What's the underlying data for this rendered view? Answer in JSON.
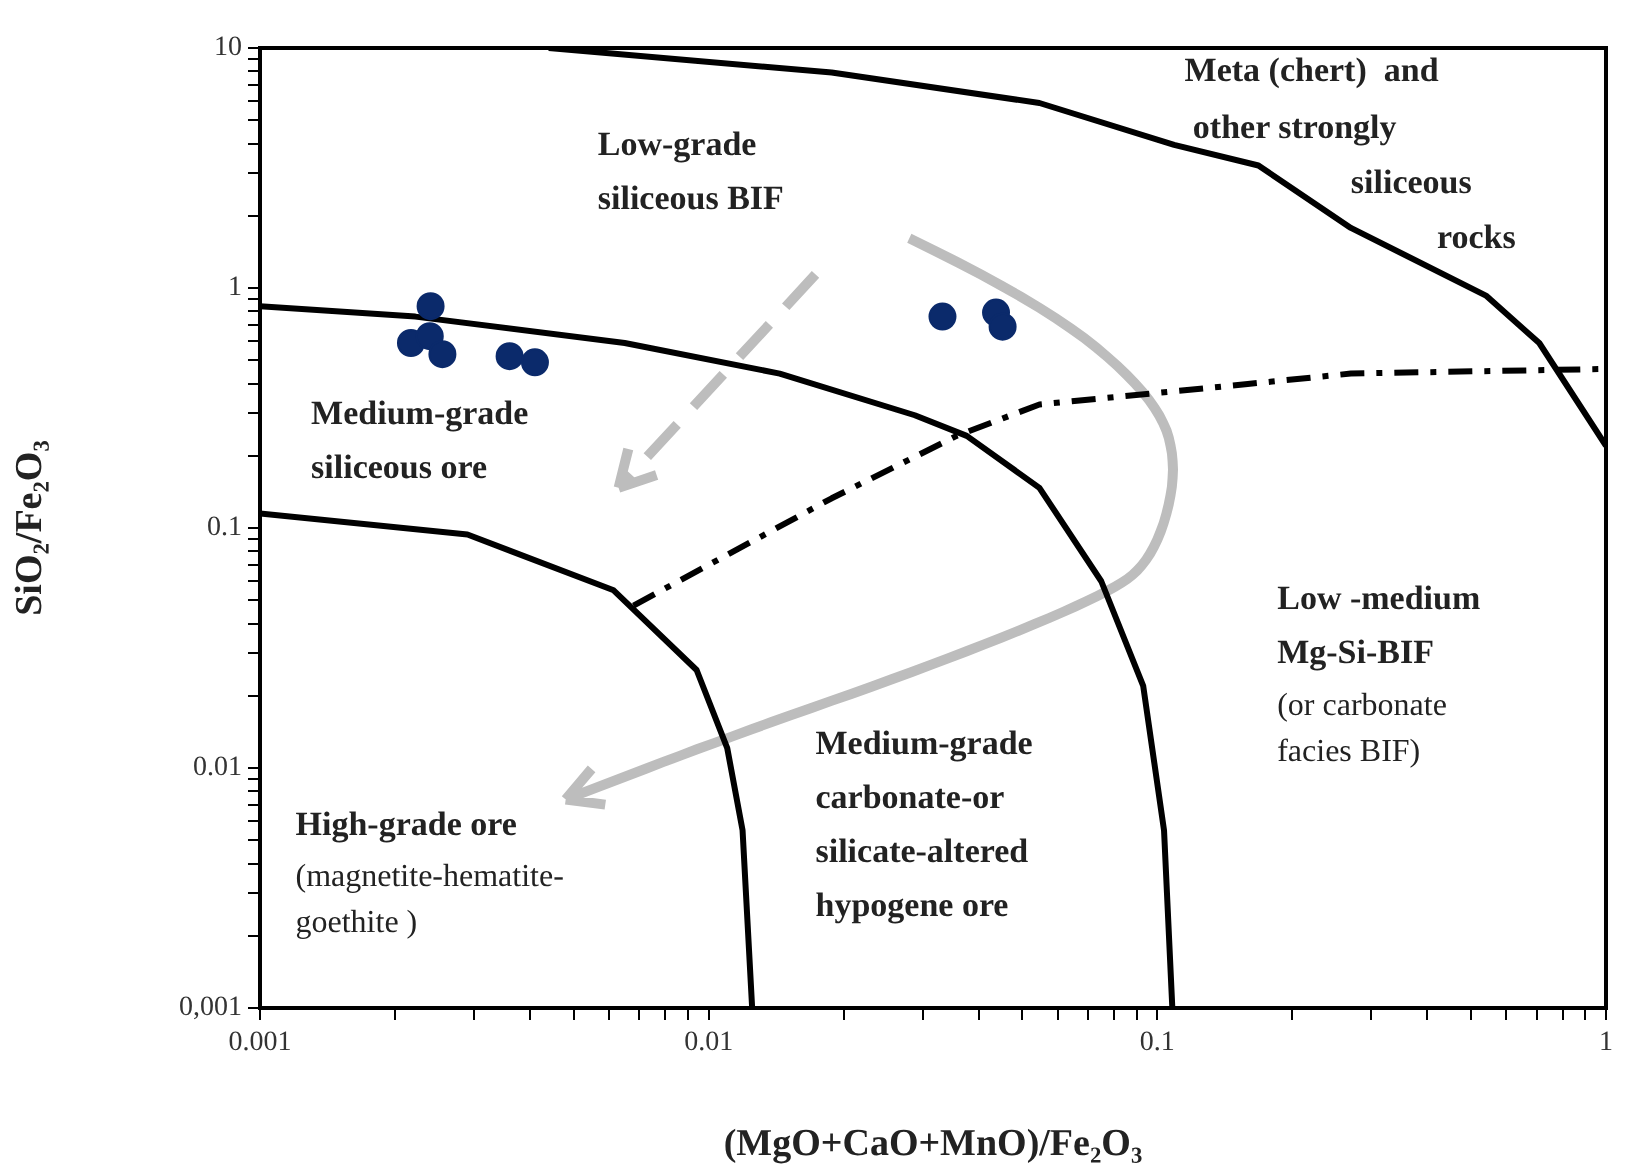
{
  "chart_data": {
    "type": "scatter",
    "xlabel": "(MgO+CaO+MnO)/Fe₂O₃",
    "ylabel": "SiO₂/Fe₂O₃",
    "log": "xy",
    "grid": false,
    "legend": false,
    "marker": "circle",
    "xlim": [
      0.001,
      1
    ],
    "ylim": [
      0.001,
      10
    ],
    "xticks": [
      0.001,
      {
        "value": 0.002,
        "label": null
      },
      {
        "value": 0.003,
        "label": null
      },
      {
        "value": 0.004,
        "label": null
      },
      {
        "value": 0.005,
        "label": null
      },
      {
        "value": 0.006,
        "label": null
      },
      {
        "value": 0.007,
        "label": null
      },
      {
        "value": 0.008,
        "label": null
      },
      {
        "value": 0.009,
        "label": null
      },
      0.01,
      {
        "value": 0.02,
        "label": null
      },
      {
        "value": 0.03,
        "label": null
      },
      {
        "value": 0.04,
        "label": null
      },
      {
        "value": 0.05,
        "label": null
      },
      {
        "value": 0.06,
        "label": null
      },
      {
        "value": 0.07,
        "label": null
      },
      {
        "value": 0.08,
        "label": null
      },
      {
        "value": 0.09,
        "label": null
      },
      0.1,
      {
        "value": 0.2,
        "label": null
      },
      {
        "value": 0.3,
        "label": null
      },
      {
        "value": 0.4,
        "label": null
      },
      {
        "value": 0.5,
        "label": null
      },
      {
        "value": 0.6,
        "label": null
      },
      {
        "value": 0.7,
        "label": null
      },
      {
        "value": 0.8,
        "label": null
      },
      {
        "value": 0.9,
        "label": null
      },
      1
    ],
    "yticks": [
      {
        "value": 0.001,
        "label": "0,001"
      },
      {
        "value": 0.002,
        "label": null
      },
      {
        "value": 0.003,
        "label": null
      },
      {
        "value": 0.004,
        "label": null
      },
      {
        "value": 0.005,
        "label": null
      },
      {
        "value": 0.006,
        "label": null
      },
      {
        "value": 0.007,
        "label": null
      },
      {
        "value": 0.008,
        "label": null
      },
      {
        "value": 0.009,
        "label": null
      },
      0.01,
      {
        "value": 0.02,
        "label": null
      },
      {
        "value": 0.03,
        "label": null
      },
      {
        "value": 0.04,
        "label": null
      },
      {
        "value": 0.05,
        "label": null
      },
      {
        "value": 0.06,
        "label": null
      },
      {
        "value": 0.07,
        "label": null
      },
      {
        "value": 0.08,
        "label": null
      },
      {
        "value": 0.09,
        "label": null
      },
      0.1,
      {
        "value": 0.2,
        "label": null
      },
      {
        "value": 0.3,
        "label": null
      },
      {
        "value": 0.4,
        "label": null
      },
      {
        "value": 0.5,
        "label": null
      },
      {
        "value": 0.6,
        "label": null
      },
      {
        "value": 0.7,
        "label": null
      },
      {
        "value": 0.8,
        "label": null
      },
      {
        "value": 0.9,
        "label": null
      },
      1,
      {
        "value": 2,
        "label": null
      },
      {
        "value": 3,
        "label": null
      },
      {
        "value": 4,
        "label": null
      },
      {
        "value": 5,
        "label": null
      },
      {
        "value": 6,
        "label": null
      },
      {
        "value": 7,
        "label": null
      },
      {
        "value": 8,
        "label": null
      },
      {
        "value": 9,
        "label": null
      },
      10
    ],
    "series": [
      {
        "color": "#0b2a6b",
        "x": [
          0.0024,
          0.00217,
          0.00239,
          0.00255,
          0.0036,
          0.0041,
          0.0332,
          0.0437,
          0.0452
        ],
        "values": [
          0.84,
          0.59,
          0.63,
          0.53,
          0.52,
          0.49,
          0.76,
          0.79,
          0.69
        ]
      },
      {
        "type": "line",
        "color": "#000000",
        "marker": "none",
        "line_style": "solid",
        "x": [
          0.0044,
          0.0188,
          0.0546,
          0.109,
          0.168,
          0.27,
          0.54,
          0.71,
          1
        ],
        "values": [
          10,
          7.9,
          5.9,
          3.95,
          3.24,
          1.78,
          0.93,
          0.59,
          0.22
        ]
      },
      {
        "type": "line",
        "color": "#000000",
        "marker": "none",
        "line_style": "solid",
        "x": [
          0.001,
          0.00222,
          0.0065,
          0.0144,
          0.0288,
          0.0376,
          0.0546,
          0.075,
          0.093,
          0.1035,
          0.108
        ],
        "values": [
          0.84,
          0.76,
          0.59,
          0.44,
          0.295,
          0.242,
          0.147,
          0.06,
          0.022,
          0.0055,
          0.001
        ]
      },
      {
        "type": "line",
        "color": "#000000",
        "marker": "none",
        "line_style": "solid",
        "x": [
          0.001,
          0.0029,
          0.00614,
          0.0094,
          0.011,
          0.0119,
          0.0125
        ],
        "values": [
          0.115,
          0.094,
          0.055,
          0.0256,
          0.0121,
          0.0055,
          0.001
        ]
      },
      {
        "type": "line",
        "color": "#000000",
        "marker": "none",
        "line_style": "dashed",
        "x": [
          0.0068,
          0.0188,
          0.0357,
          0.0546,
          0.159,
          0.27,
          1
        ],
        "values": [
          0.0475,
          0.133,
          0.242,
          0.327,
          0.398,
          0.44,
          0.46
        ]
      }
    ],
    "annotations": [
      "Meta (chert)  and",
      "other strongly",
      "siliceous",
      "rocks",
      "Low-grade\nsiliceous BIF",
      "Medium-grade\nsiliceous ore",
      "Low -medium\nMg-Si-BIF",
      "(or carbonate\nfacies BIF)",
      "Medium-grade\ncarbonate-or\nsilicate-altered\nhypogene ore",
      "High-grade ore",
      "(magnetite-hematite-\ngoethite )"
    ]
  }
}
